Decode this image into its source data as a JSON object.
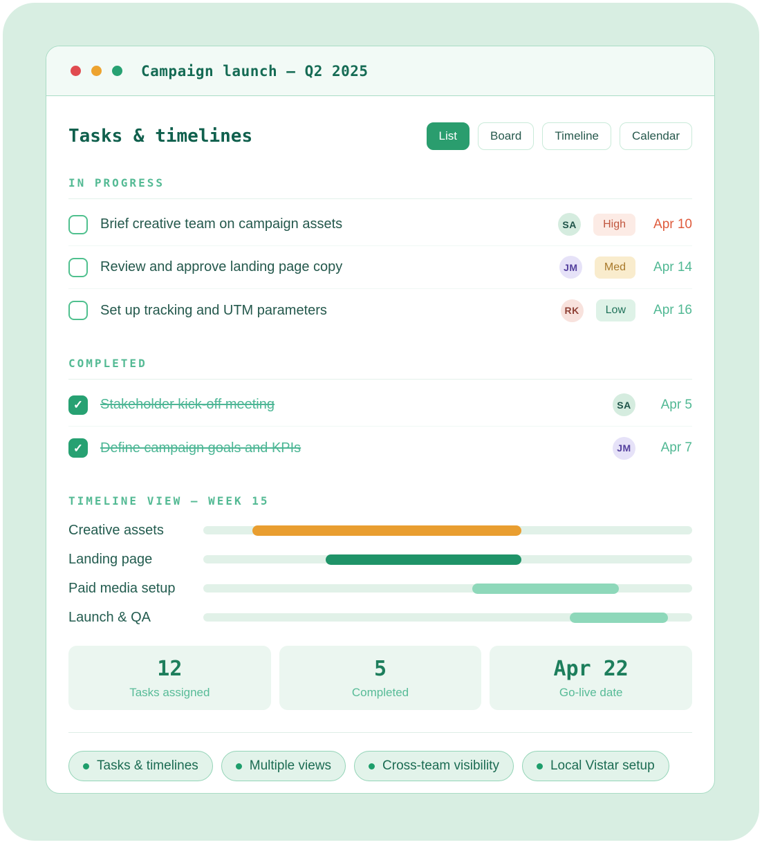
{
  "colors": {
    "page_background": "#d8eee2",
    "card_border": "#a9dcc5",
    "accent_green": "#2a9d6e",
    "dark_teal_text": "#24584c",
    "muted_green_text": "#54ba94",
    "traffic_red": "#e04b50",
    "traffic_orange": "#eda32f",
    "traffic_green": "#27a172"
  },
  "window": {
    "title": "Campaign launch — Q2 2025"
  },
  "header": {
    "title": "Tasks & timelines",
    "views": [
      {
        "label": "List",
        "active": true
      },
      {
        "label": "Board",
        "active": false
      },
      {
        "label": "Timeline",
        "active": false
      },
      {
        "label": "Calendar",
        "active": false
      }
    ]
  },
  "icons": {
    "check": "✓"
  },
  "in_progress": {
    "label": "IN PROGRESS",
    "tasks": [
      {
        "title": "Brief creative team on campaign assets",
        "assignee": {
          "initials": "SA",
          "bg": "#d5ecdf",
          "fg": "#1d5348"
        },
        "priority": {
          "label": "High",
          "bg": "#fcebe5",
          "fg": "#c0563e"
        },
        "due": {
          "label": "Apr 10",
          "fg": "#df5b3c"
        }
      },
      {
        "title": "Review and approve landing page copy",
        "assignee": {
          "initials": "JM",
          "bg": "#e6e2f8",
          "fg": "#54409e"
        },
        "priority": {
          "label": "Med",
          "bg": "#f9eccd",
          "fg": "#a8792a"
        },
        "due": {
          "label": "Apr 14",
          "fg": "#50b893"
        }
      },
      {
        "title": "Set up tracking and UTM parameters",
        "assignee": {
          "initials": "RK",
          "bg": "#f8e2dd",
          "fg": "#8f4136"
        },
        "priority": {
          "label": "Low",
          "bg": "#def2e7",
          "fg": "#20725a"
        },
        "due": {
          "label": "Apr 16",
          "fg": "#50b893"
        }
      }
    ]
  },
  "completed": {
    "label": "COMPLETED",
    "tasks": [
      {
        "title": "Stakeholder kick-off meeting",
        "assignee": {
          "initials": "SA",
          "bg": "#d5ecdf",
          "fg": "#1d5348"
        },
        "due": {
          "label": "Apr 5",
          "fg": "#50b893"
        }
      },
      {
        "title": "Define campaign goals and KPIs",
        "assignee": {
          "initials": "JM",
          "bg": "#e6e2f8",
          "fg": "#54409e"
        },
        "due": {
          "label": "Apr 7",
          "fg": "#50b893"
        }
      }
    ]
  },
  "timeline": {
    "label": "TIMELINE VIEW — WEEK 15",
    "rows": [
      {
        "label": "Creative assets",
        "start_pct": 10,
        "width_pct": 55,
        "color": "#e99e30"
      },
      {
        "label": "Landing page",
        "start_pct": 25,
        "width_pct": 40,
        "color": "#1f9368"
      },
      {
        "label": "Paid media setup",
        "start_pct": 55,
        "width_pct": 30,
        "color": "#8ed8ba"
      },
      {
        "label": "Launch & QA",
        "start_pct": 75,
        "width_pct": 20,
        "color": "#8ed8ba"
      }
    ]
  },
  "stats": [
    {
      "value": "12",
      "label": "Tasks assigned"
    },
    {
      "value": "5",
      "label": "Completed"
    },
    {
      "value": "Apr 22",
      "label": "Go-live date"
    }
  ],
  "tags": [
    {
      "label": "Tasks & timelines"
    },
    {
      "label": "Multiple views"
    },
    {
      "label": "Cross-team visibility"
    },
    {
      "label": "Local Vistar setup"
    }
  ]
}
